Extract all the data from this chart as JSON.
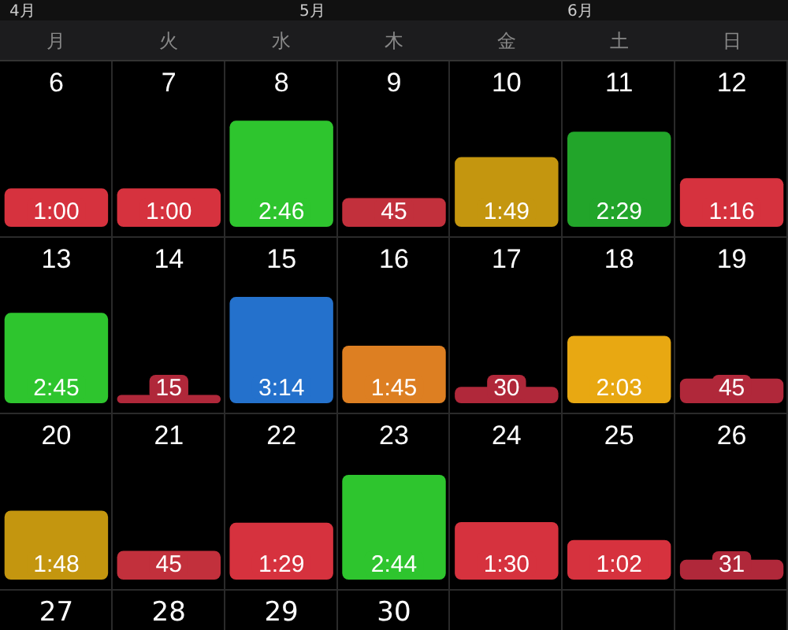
{
  "chart_data": [
    {
      "type": "bar",
      "annotations": [
        "4月",
        "5月",
        "6月",
        "月",
        "火",
        "水",
        "木",
        "金",
        "土",
        "日",
        "27",
        "28",
        "29",
        "30"
      ],
      "categories": [
        "6",
        "7",
        "8",
        "9",
        "10",
        "11",
        "12"
      ],
      "values": [
        60,
        60,
        166,
        45,
        109,
        149,
        76
      ],
      "value_labels": [
        "1:00",
        "1:00",
        "2:46",
        "45",
        "1:49",
        "2:29",
        "1:16"
      ],
      "colors": [
        "#d6323e",
        "#d6323e",
        "#2ec52e",
        "#c2303c",
        "#c4960f",
        "#22a52a",
        "#d6323e"
      ],
      "tick_labels": "x"
    },
    {
      "type": "bar",
      "categories": [
        "13",
        "14",
        "15",
        "16",
        "17",
        "18",
        "19"
      ],
      "values": [
        165,
        15,
        194,
        105,
        30,
        123,
        45
      ],
      "value_labels": [
        "2:45",
        "15",
        "3:14",
        "1:45",
        "30",
        "2:03",
        "45"
      ],
      "colors": [
        "#2ec52e",
        "#b0283a",
        "#2471cc",
        "#dd7f22",
        "#b0283a",
        "#e8a812",
        "#b0283a"
      ],
      "tick_labels": "x"
    },
    {
      "type": "bar",
      "categories": [
        "20",
        "21",
        "22",
        "23",
        "24",
        "25",
        "26"
      ],
      "values": [
        108,
        45,
        89,
        164,
        90,
        62,
        31
      ],
      "value_labels": [
        "1:48",
        "45",
        "1:29",
        "2:44",
        "1:30",
        "1:02",
        "31"
      ],
      "colors": [
        "#c4960f",
        "#c2303c",
        "#d6323e",
        "#2ec52e",
        "#d6323e",
        "#d6323e",
        "#b0283a"
      ],
      "tick_labels": "x"
    }
  ]
}
